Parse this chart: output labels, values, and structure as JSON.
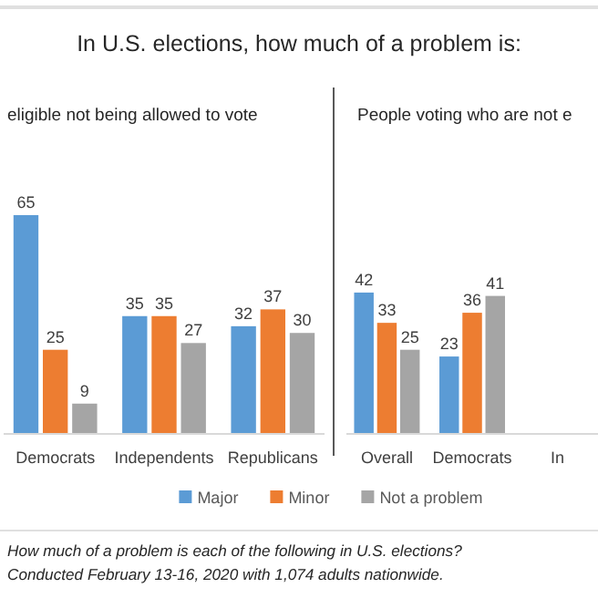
{
  "chart_data": [
    {
      "type": "bar",
      "title": "In U.S. elections, how much of a problem is:",
      "subtitle": "eligible not being allowed to vote",
      "categories": [
        "Democrats",
        "Independents",
        "Republicans"
      ],
      "series": [
        {
          "color": "#5b9bd5",
          "values": [
            65,
            35,
            32
          ]
        },
        {
          "color": "#ed7d31",
          "values": [
            25,
            35,
            37
          ]
        },
        {
          "color": "#a5a5a5",
          "values": [
            9,
            27,
            30
          ]
        }
      ],
      "data_labels": true,
      "legend": false,
      "annotations": [
        "How much of a problem is each of the following in U.S. elections?",
        "Conducted February 13-16, 2020 with 1,074 adults nationwide."
      ]
    },
    {
      "type": "bar",
      "subtitle": "People voting who are not e",
      "categories": [
        "Overall",
        "Democrats",
        "In"
      ],
      "series": [
        {
          "name": "Major",
          "color": "#5b9bd5",
          "values": [
            42,
            23,
            null
          ]
        },
        {
          "name": "Minor",
          "color": "#ed7d31",
          "values": [
            33,
            36,
            null
          ]
        },
        {
          "name": "Not a problem",
          "color": "#a5a5a5",
          "values": [
            25,
            41,
            null
          ]
        }
      ],
      "data_labels": true,
      "legend": "bottom"
    }
  ]
}
